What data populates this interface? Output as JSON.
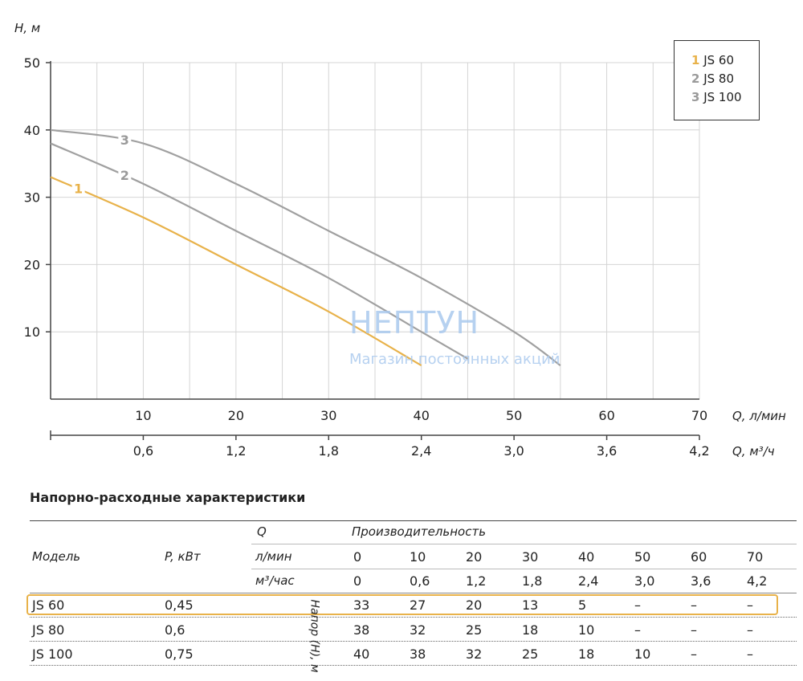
{
  "chart_data": {
    "type": "line",
    "y_axis_title": "H, м",
    "x_axis_title_primary": "Q, л/мин",
    "x_axis_title_secondary": "Q, м³/ч",
    "y_ticks": [
      "10",
      "20",
      "30",
      "40",
      "50"
    ],
    "ylim": [
      0,
      50
    ],
    "x_ticks_primary": [
      "10",
      "20",
      "30",
      "40",
      "50",
      "60",
      "70"
    ],
    "x_ticks_secondary": [
      "0,6",
      "1,2",
      "1,8",
      "2,4",
      "3,0",
      "3,6",
      "4,2"
    ],
    "xlim": [
      0,
      70
    ],
    "grid": true,
    "legend_position": "top-right",
    "series": [
      {
        "name": "JS 60",
        "number": "1",
        "color": "#e8b24a",
        "label_color": "#e8b24a",
        "x": [
          0,
          10,
          20,
          30,
          40
        ],
        "y": [
          33,
          27,
          20,
          13,
          5
        ]
      },
      {
        "name": "JS 80",
        "number": "2",
        "color": "#a0a0a0",
        "label_color": "#9a9a9a",
        "x": [
          0,
          10,
          20,
          30,
          40,
          45
        ],
        "y": [
          38,
          32,
          25,
          18,
          10,
          6
        ]
      },
      {
        "name": "JS 100",
        "number": "3",
        "color": "#a0a0a0",
        "label_color": "#9a9a9a",
        "x": [
          0,
          10,
          20,
          30,
          40,
          50,
          55
        ],
        "y": [
          40,
          38,
          32,
          25,
          18,
          10,
          5
        ]
      }
    ]
  },
  "watermark": {
    "title": "НЕПТУН",
    "subtitle": "Магазин постоянных акций"
  },
  "table": {
    "title": "Напорно-расходные характеристики",
    "col_model": "Модель",
    "col_power": "P, кВт",
    "q_label": "Q",
    "performance_label": "Производительность",
    "unit_lpm": "л/мин",
    "unit_m3h": "м³/час",
    "head_label": "Напор (H), м",
    "lpm_values": [
      "0",
      "10",
      "20",
      "30",
      "40",
      "50",
      "60",
      "70"
    ],
    "m3h_values": [
      "0",
      "0,6",
      "1,2",
      "1,8",
      "2,4",
      "3,0",
      "3,6",
      "4,2"
    ],
    "rows": [
      {
        "model": "JS 60",
        "power": "0,45",
        "values": [
          "33",
          "27",
          "20",
          "13",
          "5",
          "–",
          "–",
          "–"
        ]
      },
      {
        "model": "JS 80",
        "power": "0,6",
        "values": [
          "38",
          "32",
          "25",
          "18",
          "10",
          "–",
          "–",
          "–"
        ]
      },
      {
        "model": "JS 100",
        "power": "0,75",
        "values": [
          "40",
          "38",
          "32",
          "25",
          "18",
          "10",
          "–",
          "–"
        ]
      }
    ]
  }
}
